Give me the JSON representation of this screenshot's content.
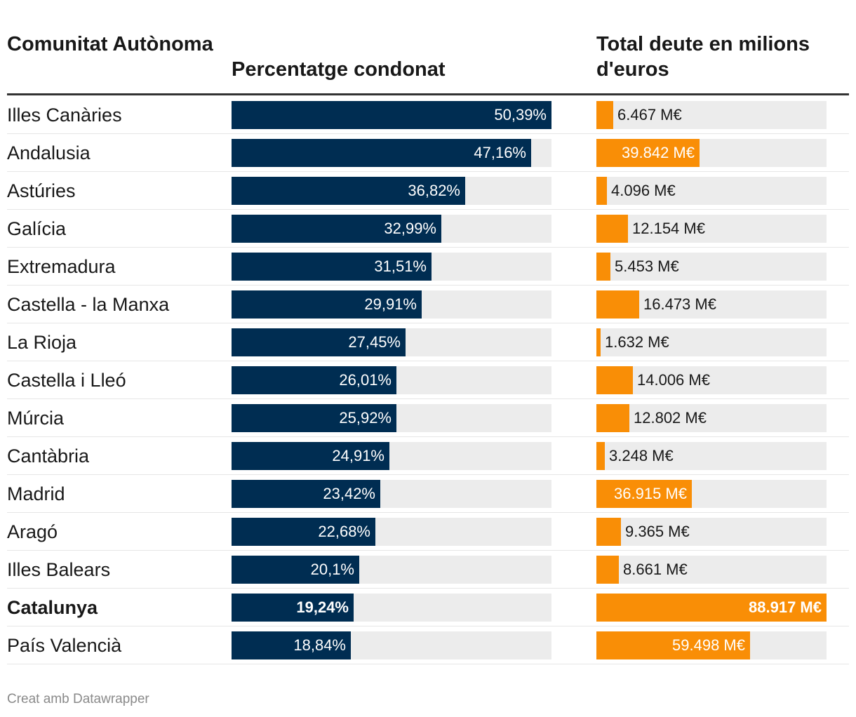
{
  "headers": {
    "region": "Comunitat Autònoma",
    "percentage": "Percentatge condonat",
    "debt": "Total deute en milions d'euros"
  },
  "footer": "Creat amb Datawrapper",
  "colors": {
    "percentage_bar": "#002d52",
    "debt_bar": "#f98e06",
    "track": "#ececec",
    "rule": "#333333"
  },
  "chart_data": {
    "type": "table",
    "title": "",
    "columns": [
      "Comunitat Autònoma",
      "Percentatge condonat",
      "Total deute en milions d'euros"
    ],
    "percentage_max": 50.39,
    "debt_max": 88917,
    "rows": [
      {
        "region": "Illes Canàries",
        "pct": 50.39,
        "pct_label": "50,39%",
        "debt": 6467,
        "debt_label": "6.467 M€",
        "bold": false
      },
      {
        "region": "Andalusia",
        "pct": 47.16,
        "pct_label": "47,16%",
        "debt": 39842,
        "debt_label": "39.842 M€",
        "bold": false
      },
      {
        "region": "Astúries",
        "pct": 36.82,
        "pct_label": "36,82%",
        "debt": 4096,
        "debt_label": "4.096 M€",
        "bold": false
      },
      {
        "region": "Galícia",
        "pct": 32.99,
        "pct_label": "32,99%",
        "debt": 12154,
        "debt_label": "12.154 M€",
        "bold": false
      },
      {
        "region": "Extremadura",
        "pct": 31.51,
        "pct_label": "31,51%",
        "debt": 5453,
        "debt_label": "5.453 M€",
        "bold": false
      },
      {
        "region": "Castella - la Manxa",
        "pct": 29.91,
        "pct_label": "29,91%",
        "debt": 16473,
        "debt_label": "16.473 M€",
        "bold": false
      },
      {
        "region": "La Rioja",
        "pct": 27.45,
        "pct_label": "27,45%",
        "debt": 1632,
        "debt_label": "1.632 M€",
        "bold": false
      },
      {
        "region": "Castella i Lleó",
        "pct": 26.01,
        "pct_label": "26,01%",
        "debt": 14006,
        "debt_label": "14.006 M€",
        "bold": false
      },
      {
        "region": "Múrcia",
        "pct": 25.92,
        "pct_label": "25,92%",
        "debt": 12802,
        "debt_label": "12.802 M€",
        "bold": false
      },
      {
        "region": "Cantàbria",
        "pct": 24.91,
        "pct_label": "24,91%",
        "debt": 3248,
        "debt_label": "3.248 M€",
        "bold": false
      },
      {
        "region": "Madrid",
        "pct": 23.42,
        "pct_label": "23,42%",
        "debt": 36915,
        "debt_label": "36.915 M€",
        "bold": false
      },
      {
        "region": "Aragó",
        "pct": 22.68,
        "pct_label": "22,68%",
        "debt": 9365,
        "debt_label": "9.365 M€",
        "bold": false
      },
      {
        "region": "Illes Balears",
        "pct": 20.1,
        "pct_label": "20,1%",
        "debt": 8661,
        "debt_label": "8.661 M€",
        "bold": false
      },
      {
        "region": "Catalunya",
        "pct": 19.24,
        "pct_label": "19,24%",
        "debt": 88917,
        "debt_label": "88.917 M€",
        "bold": true
      },
      {
        "region": "País Valencià",
        "pct": 18.84,
        "pct_label": "18,84%",
        "debt": 59498,
        "debt_label": "59.498 M€",
        "bold": false
      }
    ]
  }
}
